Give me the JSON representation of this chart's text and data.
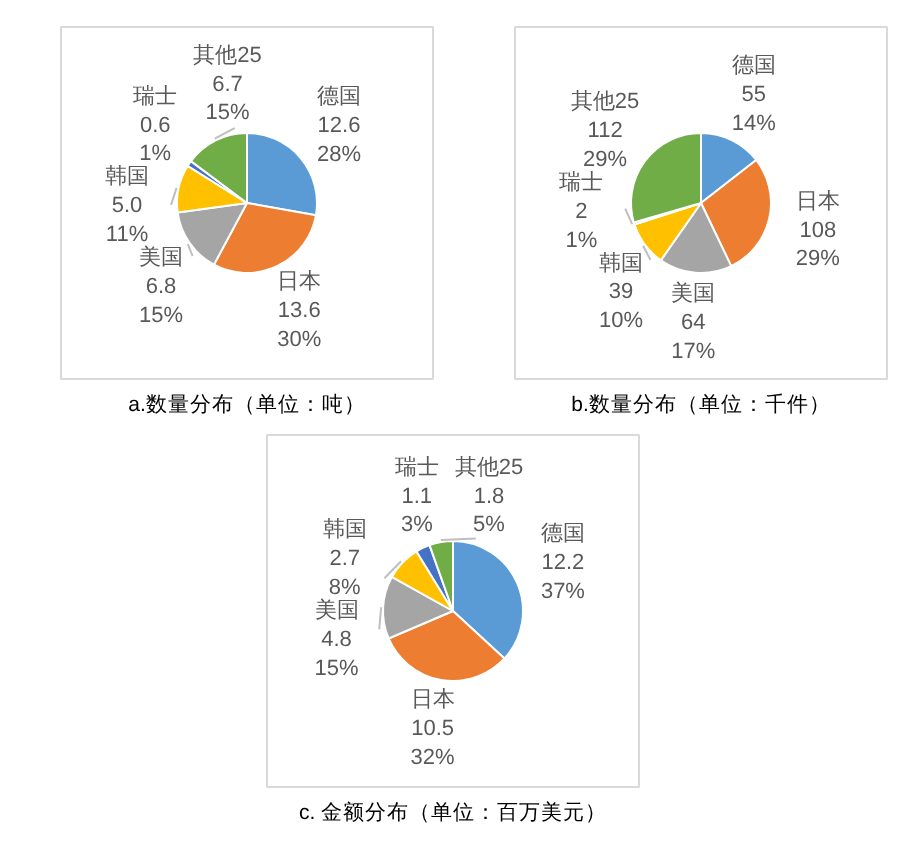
{
  "chart_data": [
    {
      "type": "pie",
      "title": "a.数量分布（单位：吨）",
      "categories": [
        "德国",
        "日本",
        "美国",
        "韩国",
        "瑞士",
        "其他25"
      ],
      "values": [
        12.6,
        13.6,
        6.8,
        5.0,
        0.6,
        6.7
      ],
      "value_labels": [
        "12.6\n28%",
        "13.6\n30%",
        "6.8\n15%",
        "5.0\n11%",
        "0.6\n1%",
        "6.7\n15%"
      ],
      "colors": [
        "#5b9bd5",
        "#ed7d31",
        "#a5a5a5",
        "#ffc000",
        "#4472c4",
        "#70ad47"
      ]
    },
    {
      "type": "pie",
      "title": "b.数量分布（单位：千件）",
      "categories": [
        "德国",
        "日本",
        "美国",
        "韩国",
        "瑞士",
        "其他25"
      ],
      "values": [
        55,
        108,
        64,
        39,
        2,
        112
      ],
      "value_labels": [
        "55\n14%",
        "108\n29%",
        "64\n17%",
        "39\n10%",
        "2\n1%",
        "112\n29%"
      ],
      "colors": [
        "#5b9bd5",
        "#ed7d31",
        "#a5a5a5",
        "#ffc000",
        "#4472c4",
        "#70ad47"
      ]
    },
    {
      "type": "pie",
      "title": "c. 金额分布（单位：百万美元）",
      "categories": [
        "德国",
        "日本",
        "美国",
        "韩国",
        "瑞士",
        "其他25"
      ],
      "values": [
        12.2,
        10.5,
        4.8,
        2.7,
        1.1,
        1.8
      ],
      "value_labels": [
        "12.2\n37%",
        "10.5\n32%",
        "4.8\n15%",
        "2.7\n8%",
        "1.1\n3%",
        "1.8\n5%"
      ],
      "colors": [
        "#5b9bd5",
        "#ed7d31",
        "#a5a5a5",
        "#ffc000",
        "#4472c4",
        "#70ad47"
      ]
    }
  ]
}
